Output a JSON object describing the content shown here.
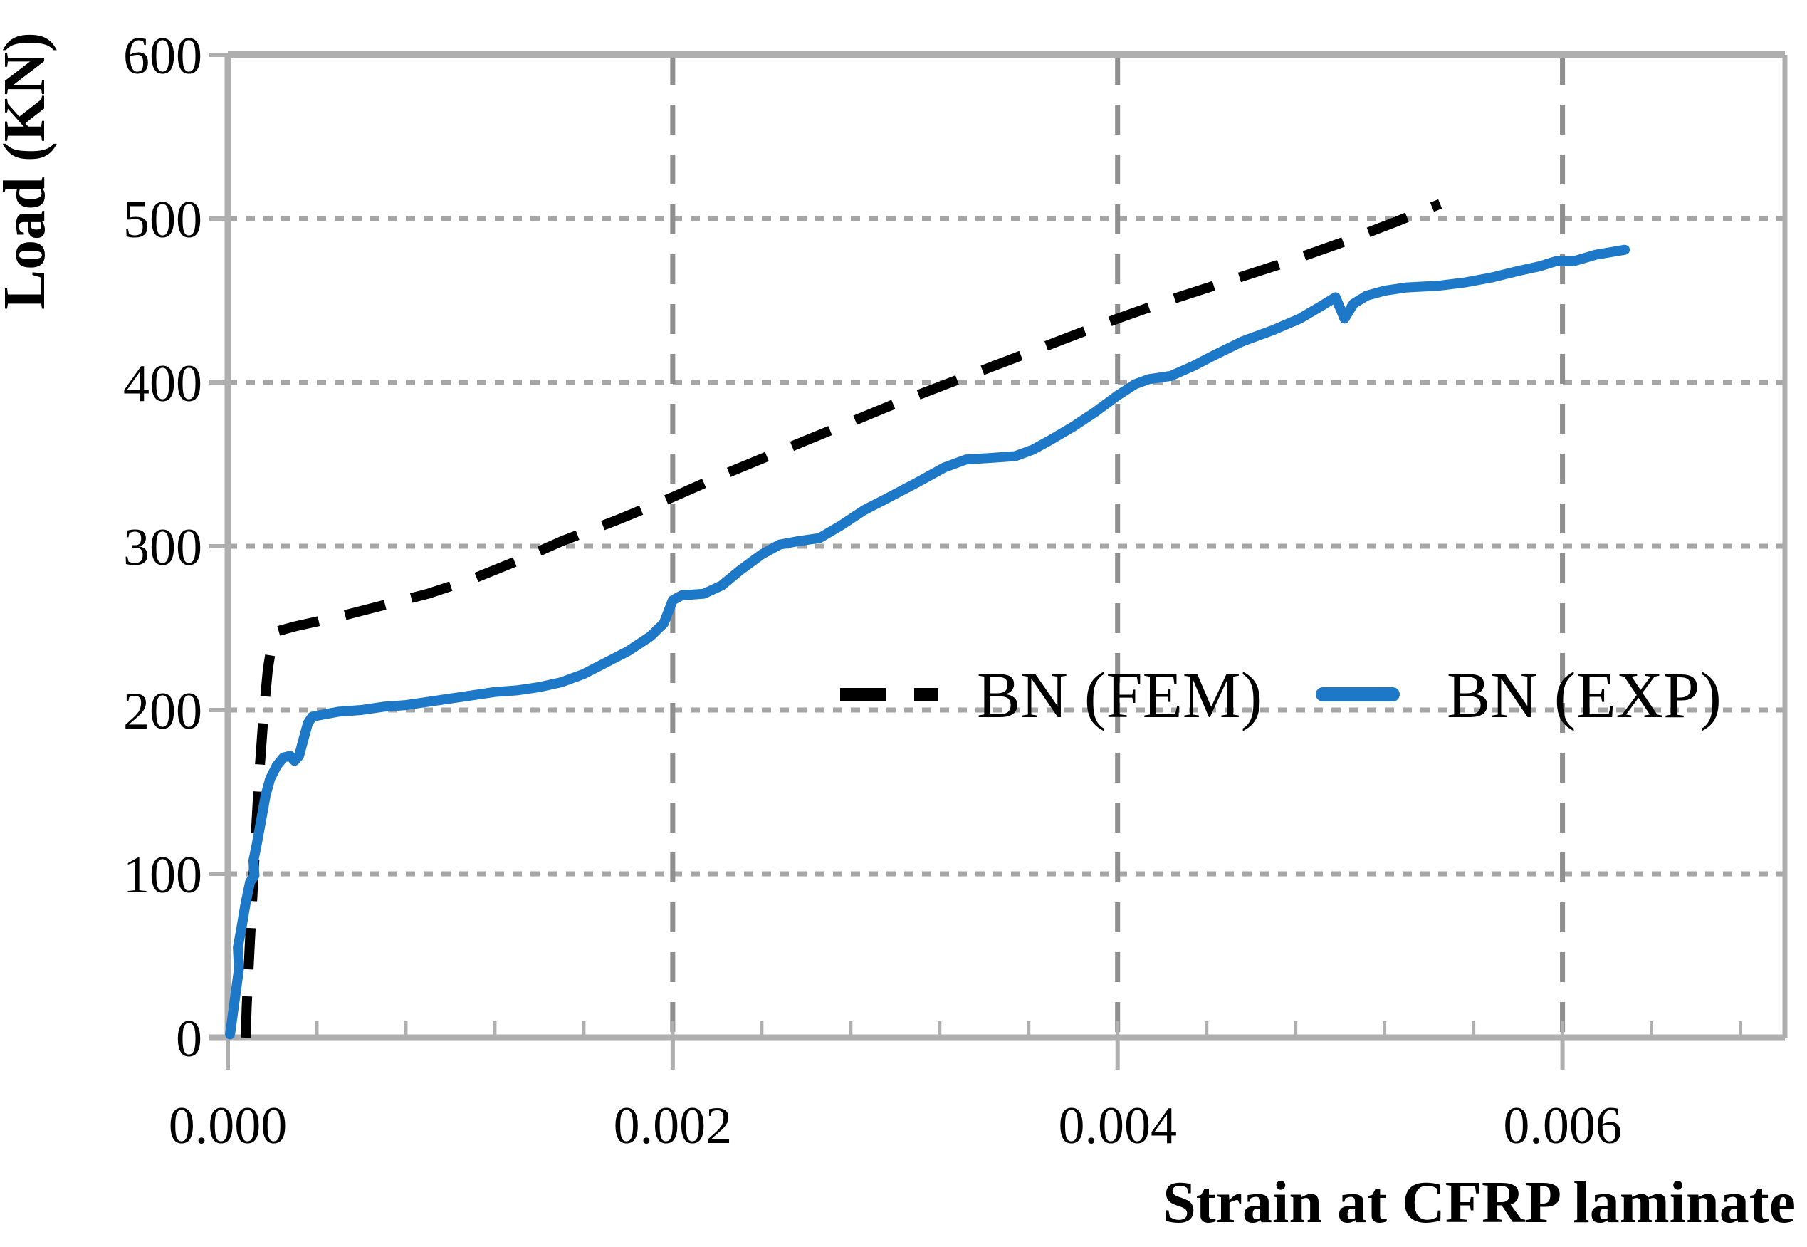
{
  "chart_data": {
    "type": "line",
    "title": "",
    "xlabel": "Strain at CFRP laminate",
    "ylabel": "Load (KN)",
    "xlim": [
      0,
      0.007
    ],
    "ylim": [
      0,
      600
    ],
    "x_major_ticks": [
      0,
      0.002,
      0.004,
      0.006
    ],
    "x_tick_labels": [
      "0.000",
      "0.002",
      "0.004",
      "0.006"
    ],
    "x_minor_step": 0.0004,
    "y_ticks": [
      0,
      100,
      200,
      300,
      400,
      500,
      600
    ],
    "y_tick_labels": [
      "0",
      "100",
      "200",
      "300",
      "400",
      "500",
      "600"
    ],
    "grid": {
      "horizontal_at": [
        100,
        200,
        300,
        400,
        500
      ],
      "vertical_at": [
        0.002,
        0.004,
        0.006
      ],
      "horizontal_style": "dotted",
      "vertical_style": "dashed"
    },
    "legend": {
      "position": "inside-middle-right",
      "items": [
        {
          "label": "BN (FEM)",
          "line_style": "dashed",
          "color": "#000000"
        },
        {
          "label": "BN (EXP)",
          "line_style": "solid",
          "color": "#1E78C8"
        }
      ]
    },
    "series": [
      {
        "name": "BN (FEM)",
        "line_style": "dashed",
        "color": "#000000",
        "points": [
          [
            8e-05,
            0
          ],
          [
            8.5e-05,
            20
          ],
          [
            0.0001,
            60
          ],
          [
            0.00012,
            110
          ],
          [
            0.00014,
            158
          ],
          [
            0.00016,
            196
          ],
          [
            0.00018,
            225
          ],
          [
            0.0002,
            242
          ],
          [
            0.00022,
            248
          ],
          [
            0.0003,
            251
          ],
          [
            0.0005,
            257
          ],
          [
            0.0007,
            264
          ],
          [
            0.0009,
            271
          ],
          [
            0.0011,
            280
          ],
          [
            0.0013,
            291
          ],
          [
            0.0015,
            303
          ],
          [
            0.00175,
            316
          ],
          [
            0.002,
            330
          ],
          [
            0.00225,
            345
          ],
          [
            0.0025,
            359
          ],
          [
            0.00275,
            373
          ],
          [
            0.003,
            387
          ],
          [
            0.00325,
            400
          ],
          [
            0.0035,
            413
          ],
          [
            0.00375,
            426
          ],
          [
            0.004,
            439
          ],
          [
            0.00425,
            451
          ],
          [
            0.0045,
            462
          ],
          [
            0.00475,
            473
          ],
          [
            0.005,
            485
          ],
          [
            0.00525,
            498
          ],
          [
            0.00545,
            509
          ]
        ]
      },
      {
        "name": "BN (EXP)",
        "line_style": "solid",
        "color": "#1E78C8",
        "points": [
          [
            1e-05,
            2
          ],
          [
            3e-05,
            22
          ],
          [
            5e-05,
            42
          ],
          [
            4.5e-05,
            55
          ],
          [
            6e-05,
            66
          ],
          [
            8e-05,
            82
          ],
          [
            0.0001,
            95
          ],
          [
            0.00012,
            99
          ],
          [
            0.000115,
            108
          ],
          [
            0.00013,
            118
          ],
          [
            0.00015,
            133
          ],
          [
            0.00017,
            148
          ],
          [
            0.00019,
            158
          ],
          [
            0.00022,
            166
          ],
          [
            0.00025,
            171
          ],
          [
            0.00028,
            172
          ],
          [
            0.0003,
            169
          ],
          [
            0.00032,
            172
          ],
          [
            0.00034,
            182
          ],
          [
            0.00036,
            192
          ],
          [
            0.00038,
            196
          ],
          [
            0.00042,
            197
          ],
          [
            0.0005,
            199
          ],
          [
            0.0006,
            200
          ],
          [
            0.0007,
            202
          ],
          [
            0.0008,
            203
          ],
          [
            0.0009,
            205
          ],
          [
            0.001,
            207
          ],
          [
            0.0011,
            209
          ],
          [
            0.0012,
            211
          ],
          [
            0.0013,
            212
          ],
          [
            0.0014,
            214
          ],
          [
            0.0015,
            217
          ],
          [
            0.0016,
            222
          ],
          [
            0.0017,
            229
          ],
          [
            0.0018,
            236
          ],
          [
            0.0019,
            245
          ],
          [
            0.00196,
            253
          ],
          [
            0.002,
            267
          ],
          [
            0.00204,
            270
          ],
          [
            0.00214,
            271
          ],
          [
            0.00222,
            276
          ],
          [
            0.0023,
            285
          ],
          [
            0.0024,
            295
          ],
          [
            0.00248,
            301
          ],
          [
            0.00256,
            303
          ],
          [
            0.00266,
            305
          ],
          [
            0.00276,
            313
          ],
          [
            0.00286,
            322
          ],
          [
            0.00296,
            329
          ],
          [
            0.0031,
            339
          ],
          [
            0.00322,
            348
          ],
          [
            0.00332,
            353
          ],
          [
            0.00344,
            354
          ],
          [
            0.00354,
            355
          ],
          [
            0.00362,
            359
          ],
          [
            0.0037,
            365
          ],
          [
            0.0038,
            373
          ],
          [
            0.0039,
            382
          ],
          [
            0.004,
            392
          ],
          [
            0.00408,
            399
          ],
          [
            0.00414,
            402
          ],
          [
            0.00424,
            404
          ],
          [
            0.00434,
            410
          ],
          [
            0.00444,
            417
          ],
          [
            0.00456,
            425
          ],
          [
            0.0047,
            432
          ],
          [
            0.00482,
            439
          ],
          [
            0.00492,
            447
          ],
          [
            0.00498,
            452
          ],
          [
            0.00502,
            439
          ],
          [
            0.00506,
            448
          ],
          [
            0.00512,
            453
          ],
          [
            0.0052,
            456
          ],
          [
            0.0053,
            458
          ],
          [
            0.00544,
            459
          ],
          [
            0.00556,
            461
          ],
          [
            0.00568,
            464
          ],
          [
            0.0058,
            468
          ],
          [
            0.0059,
            471
          ],
          [
            0.00597,
            474
          ],
          [
            0.00605,
            474
          ],
          [
            0.00615,
            478
          ],
          [
            0.00628,
            481
          ]
        ]
      }
    ]
  },
  "colors": {
    "background": "#FFFFFF",
    "axis": "#AFAFAF",
    "grid_horizontal": "#A6A6A6",
    "grid_vertical": "#8F8F8F",
    "text": "#000000",
    "series_fem": "#000000",
    "series_exp": "#1E78C8"
  }
}
